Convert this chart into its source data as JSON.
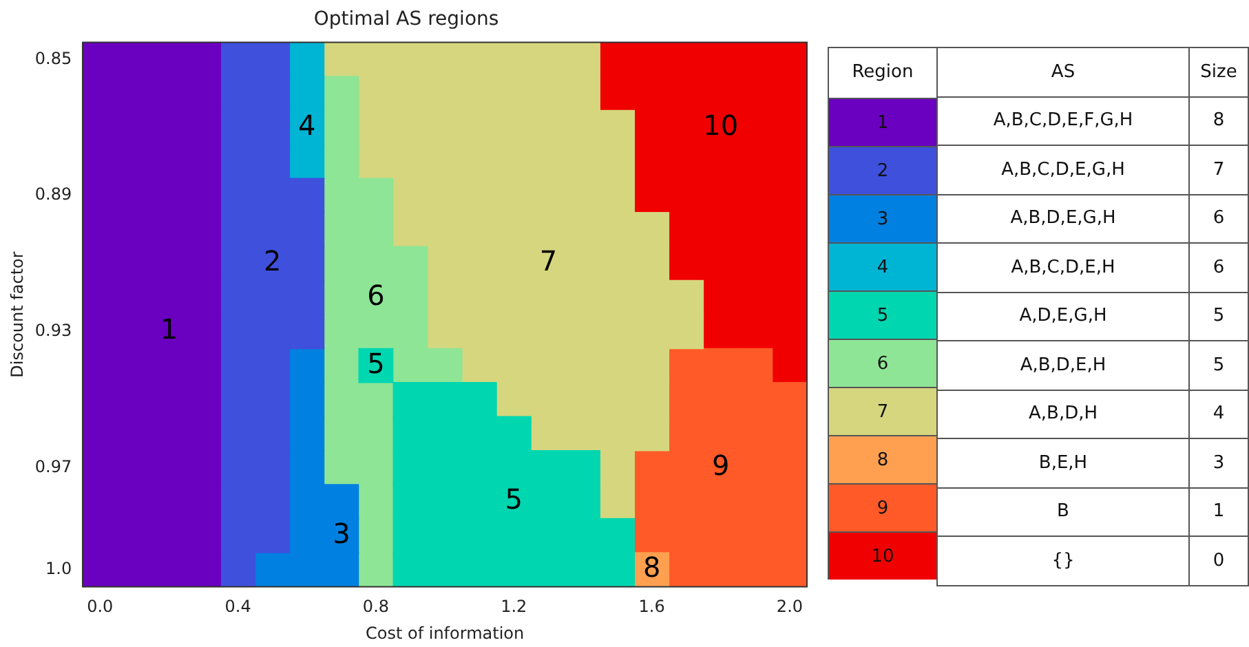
{
  "chart_data": [
    {
      "type": "heatmap",
      "title": "Optimal AS regions",
      "xlabel": "Cost of information",
      "ylabel": "Discount factor",
      "categories": [
        "0.0",
        null,
        null,
        null,
        "0.4",
        null,
        null,
        null,
        "0.8",
        null,
        null,
        null,
        "1.2",
        null,
        null,
        null,
        "1.6",
        null,
        null,
        null,
        "2.0"
      ],
      "y_categories": [
        "0.85",
        null,
        null,
        null,
        "0.89",
        null,
        null,
        null,
        "0.93",
        null,
        null,
        null,
        "0.97",
        null,
        null,
        "1.0"
      ],
      "colors": [
        "#6a00c0",
        "#3e50dc",
        "#0080e0",
        "#00b4d4",
        "#00d6b0",
        "#8ee596",
        "#d6d67e",
        "#ffa050",
        "#ff5a28",
        "#f00000"
      ],
      "clabel": "Region",
      "clim": [
        10.5,
        0.5
      ],
      "cticks": [
        1,
        2,
        3,
        4,
        5,
        6,
        7,
        8,
        9,
        10
      ],
      "cells": [
        [
          1,
          1,
          1,
          1,
          2,
          2,
          4,
          7,
          7,
          7,
          7,
          7,
          7,
          7,
          7,
          10,
          10,
          10,
          10,
          10,
          10
        ],
        [
          1,
          1,
          1,
          1,
          2,
          2,
          4,
          6,
          7,
          7,
          7,
          7,
          7,
          7,
          7,
          10,
          10,
          10,
          10,
          10,
          10
        ],
        [
          1,
          1,
          1,
          1,
          2,
          2,
          4,
          6,
          7,
          7,
          7,
          7,
          7,
          7,
          7,
          7,
          10,
          10,
          10,
          10,
          10
        ],
        [
          1,
          1,
          1,
          1,
          2,
          2,
          4,
          6,
          7,
          7,
          7,
          7,
          7,
          7,
          7,
          7,
          10,
          10,
          10,
          10,
          10
        ],
        [
          1,
          1,
          1,
          1,
          2,
          2,
          2,
          6,
          6,
          7,
          7,
          7,
          7,
          7,
          7,
          7,
          10,
          10,
          10,
          10,
          10
        ],
        [
          1,
          1,
          1,
          1,
          2,
          2,
          2,
          6,
          6,
          7,
          7,
          7,
          7,
          7,
          7,
          7,
          7,
          10,
          10,
          10,
          10
        ],
        [
          1,
          1,
          1,
          1,
          2,
          2,
          2,
          6,
          6,
          6,
          7,
          7,
          7,
          7,
          7,
          7,
          7,
          10,
          10,
          10,
          10
        ],
        [
          1,
          1,
          1,
          1,
          2,
          2,
          2,
          6,
          6,
          6,
          7,
          7,
          7,
          7,
          7,
          7,
          7,
          7,
          10,
          10,
          10
        ],
        [
          1,
          1,
          1,
          1,
          2,
          2,
          2,
          6,
          6,
          6,
          7,
          7,
          7,
          7,
          7,
          7,
          7,
          7,
          10,
          10,
          10
        ],
        [
          1,
          1,
          1,
          1,
          2,
          2,
          3,
          6,
          5,
          6,
          6,
          7,
          7,
          7,
          7,
          7,
          7,
          9,
          9,
          9,
          10
        ],
        [
          1,
          1,
          1,
          1,
          2,
          2,
          3,
          6,
          6,
          5,
          5,
          5,
          7,
          7,
          7,
          7,
          7,
          9,
          9,
          9,
          9
        ],
        [
          1,
          1,
          1,
          1,
          2,
          2,
          3,
          6,
          6,
          5,
          5,
          5,
          5,
          7,
          7,
          7,
          7,
          9,
          9,
          9,
          9
        ],
        [
          1,
          1,
          1,
          1,
          2,
          2,
          3,
          6,
          6,
          5,
          5,
          5,
          5,
          5,
          5,
          7,
          9,
          9,
          9,
          9,
          9
        ],
        [
          1,
          1,
          1,
          1,
          2,
          2,
          3,
          3,
          6,
          5,
          5,
          5,
          5,
          5,
          5,
          7,
          9,
          9,
          9,
          9,
          9
        ],
        [
          1,
          1,
          1,
          1,
          2,
          2,
          3,
          3,
          6,
          5,
          5,
          5,
          5,
          5,
          5,
          5,
          9,
          9,
          9,
          9,
          9
        ],
        [
          1,
          1,
          1,
          1,
          2,
          3,
          3,
          3,
          6,
          5,
          5,
          5,
          5,
          5,
          5,
          5,
          8,
          9,
          9,
          9,
          9
        ]
      ],
      "cell_labels": [
        [
          null,
          null,
          null,
          null,
          null,
          null,
          null,
          null,
          null,
          null,
          null,
          null,
          null,
          null,
          null,
          null,
          null,
          null,
          null,
          null,
          null
        ],
        [
          null,
          null,
          null,
          null,
          null,
          null,
          null,
          null,
          null,
          null,
          null,
          null,
          null,
          null,
          null,
          null,
          null,
          null,
          null,
          null,
          null
        ],
        [
          null,
          null,
          null,
          null,
          null,
          null,
          "4",
          null,
          null,
          null,
          null,
          null,
          null,
          null,
          null,
          null,
          null,
          null,
          "10",
          null,
          null
        ],
        [
          null,
          null,
          null,
          null,
          null,
          null,
          null,
          null,
          null,
          null,
          null,
          null,
          null,
          null,
          null,
          null,
          null,
          null,
          null,
          null,
          null
        ],
        [
          null,
          null,
          null,
          null,
          null,
          null,
          null,
          null,
          null,
          null,
          null,
          null,
          null,
          null,
          null,
          null,
          null,
          null,
          null,
          null,
          null
        ],
        [
          null,
          null,
          null,
          null,
          null,
          null,
          null,
          null,
          null,
          null,
          null,
          null,
          null,
          null,
          null,
          null,
          null,
          null,
          null,
          null,
          null
        ],
        [
          null,
          null,
          null,
          null,
          null,
          "2",
          null,
          null,
          null,
          null,
          null,
          null,
          null,
          "7",
          null,
          null,
          null,
          null,
          null,
          null,
          null
        ],
        [
          null,
          null,
          null,
          null,
          null,
          null,
          null,
          null,
          "6",
          null,
          null,
          null,
          null,
          null,
          null,
          null,
          null,
          null,
          null,
          null,
          null
        ],
        [
          null,
          null,
          "1",
          null,
          null,
          null,
          null,
          null,
          null,
          null,
          null,
          null,
          null,
          null,
          null,
          null,
          null,
          null,
          null,
          null,
          null
        ],
        [
          null,
          null,
          null,
          null,
          null,
          null,
          null,
          null,
          "5",
          null,
          null,
          null,
          null,
          null,
          null,
          null,
          null,
          null,
          null,
          null,
          null
        ],
        [
          null,
          null,
          null,
          null,
          null,
          null,
          null,
          null,
          null,
          null,
          null,
          null,
          null,
          null,
          null,
          null,
          null,
          null,
          null,
          null,
          null
        ],
        [
          null,
          null,
          null,
          null,
          null,
          null,
          null,
          null,
          null,
          null,
          null,
          null,
          null,
          null,
          null,
          null,
          null,
          null,
          null,
          null,
          null
        ],
        [
          null,
          null,
          null,
          null,
          null,
          null,
          null,
          null,
          null,
          null,
          null,
          null,
          null,
          null,
          null,
          null,
          null,
          null,
          "9",
          null,
          null
        ],
        [
          null,
          null,
          null,
          null,
          null,
          null,
          null,
          null,
          null,
          null,
          null,
          null,
          "5",
          null,
          null,
          null,
          null,
          null,
          null,
          null,
          null
        ],
        [
          null,
          null,
          null,
          null,
          null,
          null,
          null,
          "3",
          null,
          null,
          null,
          null,
          null,
          null,
          null,
          null,
          null,
          null,
          null,
          null,
          null
        ],
        [
          null,
          null,
          null,
          null,
          null,
          null,
          null,
          null,
          null,
          null,
          null,
          null,
          null,
          null,
          null,
          null,
          "8",
          null,
          null,
          null,
          null
        ]
      ]
    },
    {
      "type": "other",
      "categories": [
        "AS",
        "Size"
      ],
      "cell_labels": [
        [
          "A,B,C,D,E,F,G,H",
          "8"
        ],
        [
          "A,B,C,D,E,G,H",
          "7"
        ],
        [
          "A,B,D,E,G,H",
          "6"
        ],
        [
          "A,B,C,D,E,H",
          "6"
        ],
        [
          "A,D,E,G,H",
          "5"
        ],
        [
          "A,B,D,E,H",
          "5"
        ],
        [
          "A,B,D,H",
          "4"
        ],
        [
          "B,E,H",
          "3"
        ],
        [
          "B",
          "1"
        ],
        [
          "{}",
          "0"
        ]
      ]
    }
  ]
}
